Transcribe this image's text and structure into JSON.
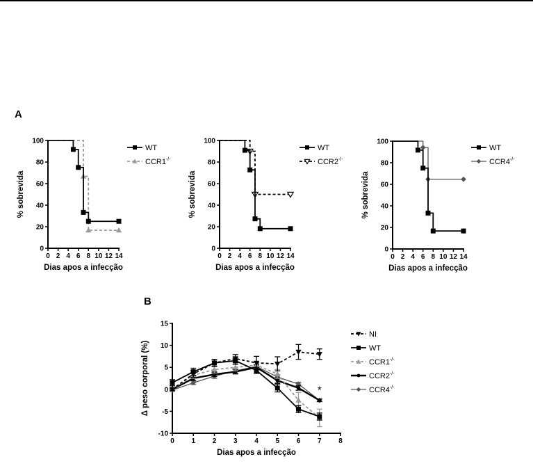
{
  "panel_labels": {
    "a": "A",
    "b": "B"
  },
  "chart_data": [
    {
      "id": "survival-ccr1",
      "type": "line",
      "subtype": "kaplan-meier-step",
      "xlabel": "Dias apos a infecção",
      "ylabel": "% sobrevida",
      "xlim": [
        0,
        14
      ],
      "ylim": [
        0,
        100
      ],
      "xticks": [
        "0",
        "2",
        "4",
        "6",
        "8",
        "10",
        "12",
        "14"
      ],
      "yticks": [
        "0",
        "20",
        "40",
        "60",
        "80",
        "100"
      ],
      "legend_position": "right",
      "series": [
        {
          "name": "WT",
          "sup": "",
          "color": "#000000",
          "dash": "solid",
          "marker": "square",
          "points": [
            [
              0,
              100
            ],
            [
              5,
              91.7
            ],
            [
              6,
              75
            ],
            [
              7,
              33.3
            ],
            [
              8,
              25
            ],
            [
              14,
              25
            ]
          ]
        },
        {
          "name": "CCR1",
          "sup": "-/-",
          "color": "#999999",
          "dash": "dashed",
          "marker": "triangle-up",
          "points": [
            [
              0,
              100
            ],
            [
              7,
              66.7
            ],
            [
              8,
              16.7
            ],
            [
              14,
              16.7
            ]
          ]
        }
      ]
    },
    {
      "id": "survival-ccr2",
      "type": "line",
      "subtype": "kaplan-meier-step",
      "xlabel": "Dias apos a infecção",
      "ylabel": "% sobrevida",
      "xlim": [
        0,
        14
      ],
      "ylim": [
        0,
        100
      ],
      "xticks": [
        "0",
        "2",
        "4",
        "6",
        "8",
        "10",
        "12",
        "14"
      ],
      "yticks": [
        "0",
        "20",
        "40",
        "60",
        "80",
        "100"
      ],
      "legend_position": "right",
      "series": [
        {
          "name": "WT",
          "sup": "",
          "color": "#000000",
          "dash": "solid",
          "marker": "square",
          "points": [
            [
              0,
              100
            ],
            [
              5,
              90.9
            ],
            [
              6,
              72.7
            ],
            [
              7,
              27.3
            ],
            [
              8,
              18.2
            ],
            [
              14,
              18.2
            ]
          ]
        },
        {
          "name": "CCR2",
          "sup": "-/-",
          "color": "#000000",
          "dash": "dashed",
          "marker": "triangle-down-open",
          "points": [
            [
              0,
              100
            ],
            [
              6,
              90
            ],
            [
              7,
              50
            ],
            [
              14,
              50
            ]
          ]
        }
      ]
    },
    {
      "id": "survival-ccr4",
      "type": "line",
      "subtype": "kaplan-meier-step",
      "xlabel": "Dias apos a infecção",
      "ylabel": "% sobrevida",
      "xlim": [
        0,
        14
      ],
      "ylim": [
        0,
        100
      ],
      "xticks": [
        "0",
        "2",
        "4",
        "6",
        "8",
        "10",
        "12",
        "14"
      ],
      "yticks": [
        "0",
        "20",
        "40",
        "60",
        "80",
        "100"
      ],
      "legend_position": "right",
      "series": [
        {
          "name": "WT",
          "sup": "",
          "color": "#000000",
          "dash": "solid",
          "marker": "square",
          "points": [
            [
              0,
              100
            ],
            [
              5,
              91.7
            ],
            [
              6,
              75
            ],
            [
              7,
              33.3
            ],
            [
              8,
              16.7
            ],
            [
              14,
              16.7
            ]
          ]
        },
        {
          "name": "CCR4",
          "sup": "-/-",
          "color": "#555555",
          "dash": "solid-thin",
          "marker": "diamond",
          "points": [
            [
              0,
              100
            ],
            [
              6,
              94.1
            ],
            [
              7,
              64.7
            ],
            [
              14,
              64.7
            ]
          ]
        }
      ]
    },
    {
      "id": "body-weight",
      "type": "line",
      "xlabel": "Dias apos a infecção",
      "ylabel": "Δ peso corporal (%)",
      "xlim": [
        0,
        8
      ],
      "ylim": [
        -10,
        15
      ],
      "xticks": [
        "0",
        "1",
        "2",
        "3",
        "4",
        "5",
        "6",
        "7",
        "8"
      ],
      "yticks": [
        "-10",
        "-5",
        "0",
        "5",
        "10",
        "15"
      ],
      "legend_position": "right",
      "annotation": {
        "text": "*",
        "x": 7,
        "y": -0.3
      },
      "series": [
        {
          "name": "NI",
          "sup": "",
          "color": "#000000",
          "dash": "dashed",
          "marker": "triangle-down",
          "x": [
            0,
            1,
            2,
            3,
            4,
            5,
            6,
            7
          ],
          "y": [
            0,
            3.5,
            6.0,
            7.0,
            6.0,
            5.8,
            8.5,
            8.0
          ],
          "err": [
            0.3,
            0.8,
            0.8,
            0.9,
            1.5,
            1.6,
            1.7,
            1.2
          ]
        },
        {
          "name": "WT",
          "sup": "",
          "color": "#000000",
          "dash": "solid",
          "marker": "square",
          "x": [
            0,
            1,
            2,
            3,
            4,
            5,
            6,
            7
          ],
          "y": [
            1.5,
            4.0,
            6.0,
            6.5,
            4.3,
            0.3,
            -4.5,
            -6.2
          ],
          "err": [
            0.7,
            0.8,
            0.8,
            0.8,
            0.7,
            0.9,
            0.8,
            0.8
          ]
        },
        {
          "name": "CCR1",
          "sup": "-/-",
          "color": "#999999",
          "dash": "dashed",
          "marker": "triangle-up",
          "x": [
            0,
            1,
            2,
            3,
            4,
            5,
            6,
            7
          ],
          "y": [
            0,
            3.2,
            4.5,
            5.0,
            5.5,
            3.5,
            -2.5,
            -6.5
          ],
          "err": [
            0.3,
            0.7,
            0.8,
            0.8,
            0.7,
            1.0,
            1.8,
            2.0
          ]
        },
        {
          "name": "CCR2",
          "sup": "-/-",
          "color": "#000000",
          "dash": "solid-thick",
          "marker": "circle",
          "x": [
            0,
            1,
            2,
            3,
            4,
            5,
            6,
            7
          ],
          "y": [
            0,
            2.5,
            3.4,
            4.0,
            5.0,
            2.0,
            0.3,
            -2.5
          ],
          "err": [
            0.3,
            0.5,
            0.5,
            0.5,
            0.5,
            0.6,
            0.5,
            0.3
          ]
        },
        {
          "name": "CCR4",
          "sup": "-/-",
          "color": "#555555",
          "dash": "solid-thin",
          "marker": "diamond",
          "x": [
            0,
            1,
            2,
            3,
            4,
            5,
            6,
            7
          ],
          "y": [
            -0.2,
            1.5,
            3.0,
            4.2,
            5.2,
            2.8,
            1.2,
            -2.5
          ],
          "err": [
            0.3,
            0.4,
            0.5,
            0.5,
            0.5,
            0.5,
            0.4,
            0.3
          ]
        }
      ]
    }
  ]
}
